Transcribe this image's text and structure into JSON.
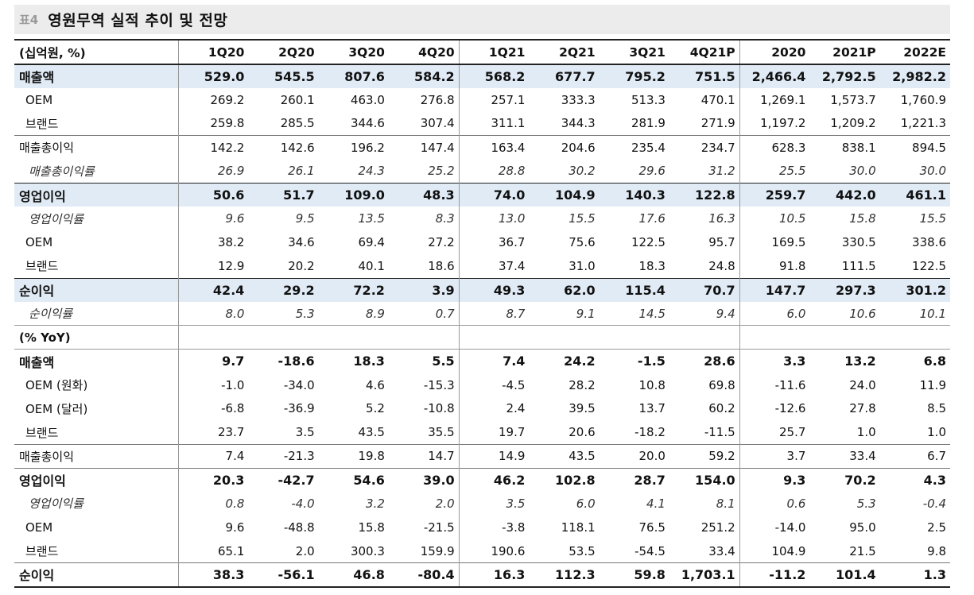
{
  "title": {
    "tag": "표4",
    "text": "영원무역 실적 추이 및 전망"
  },
  "header": [
    "(십억원, %)",
    "1Q20",
    "2Q20",
    "3Q20",
    "4Q20",
    "1Q21",
    "2Q21",
    "3Q21",
    "4Q21P",
    "2020",
    "2021P",
    "2022E"
  ],
  "rows": [
    {
      "label": "매출액",
      "values": [
        "529.0",
        "545.5",
        "807.6",
        "584.2",
        "568.2",
        "677.7",
        "795.2",
        "751.5",
        "2,466.4",
        "2,792.5",
        "2,982.2"
      ]
    },
    {
      "label": "OEM",
      "values": [
        "269.2",
        "260.1",
        "463.0",
        "276.8",
        "257.1",
        "333.3",
        "513.3",
        "470.1",
        "1,269.1",
        "1,573.7",
        "1,760.9"
      ]
    },
    {
      "label": "브랜드",
      "values": [
        "259.8",
        "285.5",
        "344.6",
        "307.4",
        "311.1",
        "344.3",
        "281.9",
        "271.9",
        "1,197.2",
        "1,209.2",
        "1,221.3"
      ]
    },
    {
      "label": "매출총이익",
      "values": [
        "142.2",
        "142.6",
        "196.2",
        "147.4",
        "163.4",
        "204.6",
        "235.4",
        "234.7",
        "628.3",
        "838.1",
        "894.5"
      ]
    },
    {
      "label": "매출총이익률",
      "values": [
        "26.9",
        "26.1",
        "24.3",
        "25.2",
        "28.8",
        "30.2",
        "29.6",
        "31.2",
        "25.5",
        "30.0",
        "30.0"
      ]
    },
    {
      "label": "영업이익",
      "values": [
        "50.6",
        "51.7",
        "109.0",
        "48.3",
        "74.0",
        "104.9",
        "140.3",
        "122.8",
        "259.7",
        "442.0",
        "461.1"
      ]
    },
    {
      "label": "영업이익률",
      "values": [
        "9.6",
        "9.5",
        "13.5",
        "8.3",
        "13.0",
        "15.5",
        "17.6",
        "16.3",
        "10.5",
        "15.8",
        "15.5"
      ]
    },
    {
      "label": "OEM",
      "values": [
        "38.2",
        "34.6",
        "69.4",
        "27.2",
        "36.7",
        "75.6",
        "122.5",
        "95.7",
        "169.5",
        "330.5",
        "338.6"
      ]
    },
    {
      "label": "브랜드",
      "values": [
        "12.9",
        "20.2",
        "40.1",
        "18.6",
        "37.4",
        "31.0",
        "18.3",
        "24.8",
        "91.8",
        "111.5",
        "122.5"
      ]
    },
    {
      "label": "순이익",
      "values": [
        "42.4",
        "29.2",
        "72.2",
        "3.9",
        "49.3",
        "62.0",
        "115.4",
        "70.7",
        "147.7",
        "297.3",
        "301.2"
      ]
    },
    {
      "label": "순이익률",
      "values": [
        "8.0",
        "5.3",
        "8.9",
        "0.7",
        "8.7",
        "9.1",
        "14.5",
        "9.4",
        "6.0",
        "10.6",
        "10.1"
      ]
    },
    {
      "label": "(% YoY)",
      "values": [
        "",
        "",
        "",
        "",
        "",
        "",
        "",
        "",
        "",
        "",
        ""
      ]
    },
    {
      "label": "매출액",
      "values": [
        "9.7",
        "-18.6",
        "18.3",
        "5.5",
        "7.4",
        "24.2",
        "-1.5",
        "28.6",
        "3.3",
        "13.2",
        "6.8"
      ]
    },
    {
      "label": "OEM (원화)",
      "values": [
        "-1.0",
        "-34.0",
        "4.6",
        "-15.3",
        "-4.5",
        "28.2",
        "10.8",
        "69.8",
        "-11.6",
        "24.0",
        "11.9"
      ]
    },
    {
      "label": "OEM (달러)",
      "values": [
        "-6.8",
        "-36.9",
        "5.2",
        "-10.8",
        "2.4",
        "39.5",
        "13.7",
        "60.2",
        "-12.6",
        "27.8",
        "8.5"
      ]
    },
    {
      "label": "브랜드",
      "values": [
        "23.7",
        "3.5",
        "43.5",
        "35.5",
        "19.7",
        "20.6",
        "-18.2",
        "-11.5",
        "25.7",
        "1.0",
        "1.0"
      ]
    },
    {
      "label": "매출총이익",
      "values": [
        "7.4",
        "-21.3",
        "19.8",
        "14.7",
        "14.9",
        "43.5",
        "20.0",
        "59.2",
        "3.7",
        "33.4",
        "6.7"
      ]
    },
    {
      "label": "영업이익",
      "values": [
        "20.3",
        "-42.7",
        "54.6",
        "39.0",
        "46.2",
        "102.8",
        "28.7",
        "154.0",
        "9.3",
        "70.2",
        "4.3"
      ]
    },
    {
      "label": "영업이익률",
      "values": [
        "0.8",
        "-4.0",
        "3.2",
        "2.0",
        "3.5",
        "6.0",
        "4.1",
        "8.1",
        "0.6",
        "5.3",
        "-0.4"
      ]
    },
    {
      "label": "OEM",
      "values": [
        "9.6",
        "-48.8",
        "15.8",
        "-21.5",
        "-3.8",
        "118.1",
        "76.5",
        "251.2",
        "-14.0",
        "95.0",
        "2.5"
      ]
    },
    {
      "label": "브랜드",
      "values": [
        "65.1",
        "2.0",
        "300.3",
        "159.9",
        "190.6",
        "53.5",
        "-54.5",
        "33.4",
        "104.9",
        "21.5",
        "9.8"
      ]
    },
    {
      "label": "순이익",
      "values": [
        "38.3",
        "-56.1",
        "46.8",
        "-80.4",
        "16.3",
        "112.3",
        "59.8",
        "1,703.1",
        "-11.2",
        "101.4",
        "1.3"
      ]
    }
  ]
}
